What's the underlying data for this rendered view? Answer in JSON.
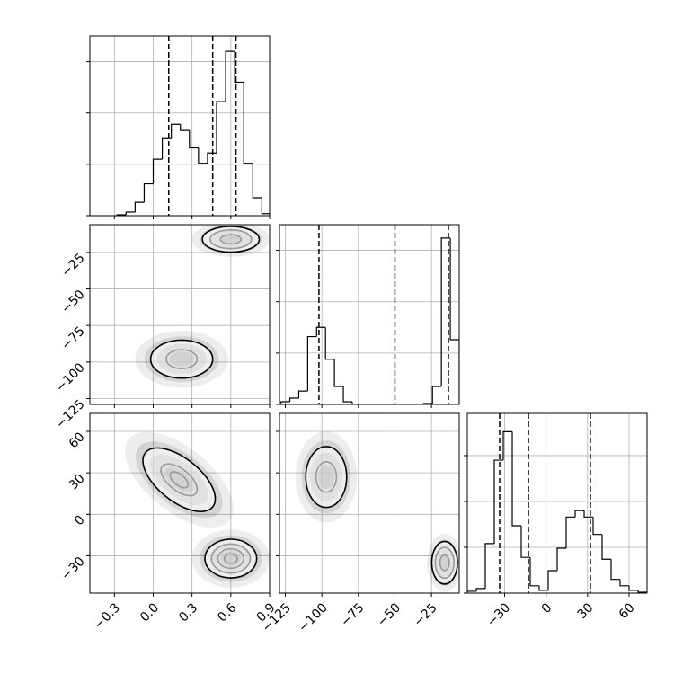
{
  "chart_data": {
    "type": "corner",
    "grid": true,
    "color": "#000000",
    "params": [
      {
        "lim": [
          -0.49,
          0.9
        ],
        "ticks": [
          {
            "value": -0.3,
            "label": "−0.3"
          },
          {
            "value": 0,
            "label": "0.0"
          },
          {
            "value": 0.3,
            "label": "0.3"
          },
          {
            "value": 0.6,
            "label": "0.6"
          },
          {
            "value": 0.9,
            "label": "0.9"
          }
        ],
        "hist": {
          "bins": [
            -0.28,
            -0.21,
            -0.14,
            -0.07,
            0,
            0.07,
            0.14,
            0.21,
            0.28,
            0.35,
            0.42,
            0.49,
            0.56,
            0.63,
            0.7,
            0.77,
            0.84,
            0.91
          ],
          "counts": [
            9,
            35,
            130,
            310,
            550,
            750,
            890,
            830,
            660,
            510,
            610,
            1110,
            1600,
            1300,
            510,
            175,
            20
          ],
          "ylim": [
            0,
            1750
          ],
          "yticks": [
            0,
            500,
            1000,
            1500
          ]
        },
        "quantiles": [
          0.12,
          0.46,
          0.64
        ]
      },
      {
        "lim": [
          -129,
          -6
        ],
        "ticks": [
          {
            "value": -125,
            "label": "−125"
          },
          {
            "value": -100,
            "label": "−100"
          },
          {
            "value": -75,
            "label": "−75"
          },
          {
            "value": -50,
            "label": "−50"
          },
          {
            "value": -25,
            "label": "−25"
          }
        ],
        "hist": {
          "bins": [
            -128,
            -121.9,
            -115.8,
            -109.7,
            -103.6,
            -97.5,
            -91.4,
            -85.3,
            -79.2,
            -73.1,
            -67,
            -60.9,
            -54.8,
            -48.7,
            -42.6,
            -36.5,
            -30.4,
            -24.3,
            -18.2,
            -12.1,
            -6
          ],
          "counts": [
            26,
            61,
            130,
            660,
            750,
            440,
            175,
            26,
            0,
            0,
            0,
            0,
            0,
            0,
            0,
            0,
            9,
            175,
            1620,
            630
          ],
          "ylim": [
            0,
            1750
          ],
          "yticks": [
            0,
            500,
            1000,
            1500
          ]
        },
        "quantiles": [
          -102,
          -50,
          -13.4
        ]
      },
      {
        "lim": [
          -57,
          73
        ],
        "ticks": [
          {
            "value": -30,
            "label": "−30"
          },
          0,
          30,
          60
        ],
        "hist": {
          "bins": [
            -57,
            -50.5,
            -44,
            -37.5,
            -31,
            -24.5,
            -18,
            -11.5,
            -5,
            1.5,
            8,
            14.5,
            21,
            27.5,
            34,
            40.5,
            47,
            53.5,
            60,
            66.5,
            73
          ],
          "counts": [
            20,
            50,
            540,
            1450,
            1760,
            735,
            390,
            80,
            30,
            245,
            490,
            830,
            900,
            830,
            640,
            370,
            150,
            80,
            30,
            10
          ],
          "ylim": [
            0,
            1960
          ],
          "yticks": [
            0,
            500,
            1000,
            1500
          ]
        },
        "quantiles": [
          -33.6,
          -12.8,
          32
        ]
      }
    ],
    "pairs": [
      {
        "clusters": [
          {
            "mean": [
              0.22,
              -98
            ],
            "sd": [
              0.12,
              6.5
            ],
            "rho": 0,
            "levels": [
              1,
              2
            ]
          },
          {
            "mean": [
              0.6,
              -16
            ],
            "sd": [
              0.1,
              4
            ],
            "rho": 0,
            "levels": [
              0.8,
              1.6,
              2.2
            ]
          }
        ]
      },
      {
        "clusters": [
          {
            "mean": [
              0.2,
              25
            ],
            "sd": [
              0.14,
              11.5
            ],
            "rho": -0.6,
            "levels": [
              0.5,
              1,
              2
            ]
          },
          {
            "mean": [
              0.6,
              -32
            ],
            "sd": [
              0.1,
              7
            ],
            "rho": 0,
            "levels": [
              0.5,
              1,
              1.5,
              2
            ]
          }
        ]
      },
      {
        "clusters": [
          {
            "mean": [
              -97,
              27
            ],
            "sd": [
              7,
              11
            ],
            "rho": 0,
            "levels": [
              1,
              2
            ]
          },
          {
            "mean": [
              -16,
              -35
            ],
            "sd": [
              4,
              7
            ],
            "rho": 0,
            "levels": [
              0.8,
              1.6,
              2.2
            ]
          }
        ]
      }
    ]
  }
}
